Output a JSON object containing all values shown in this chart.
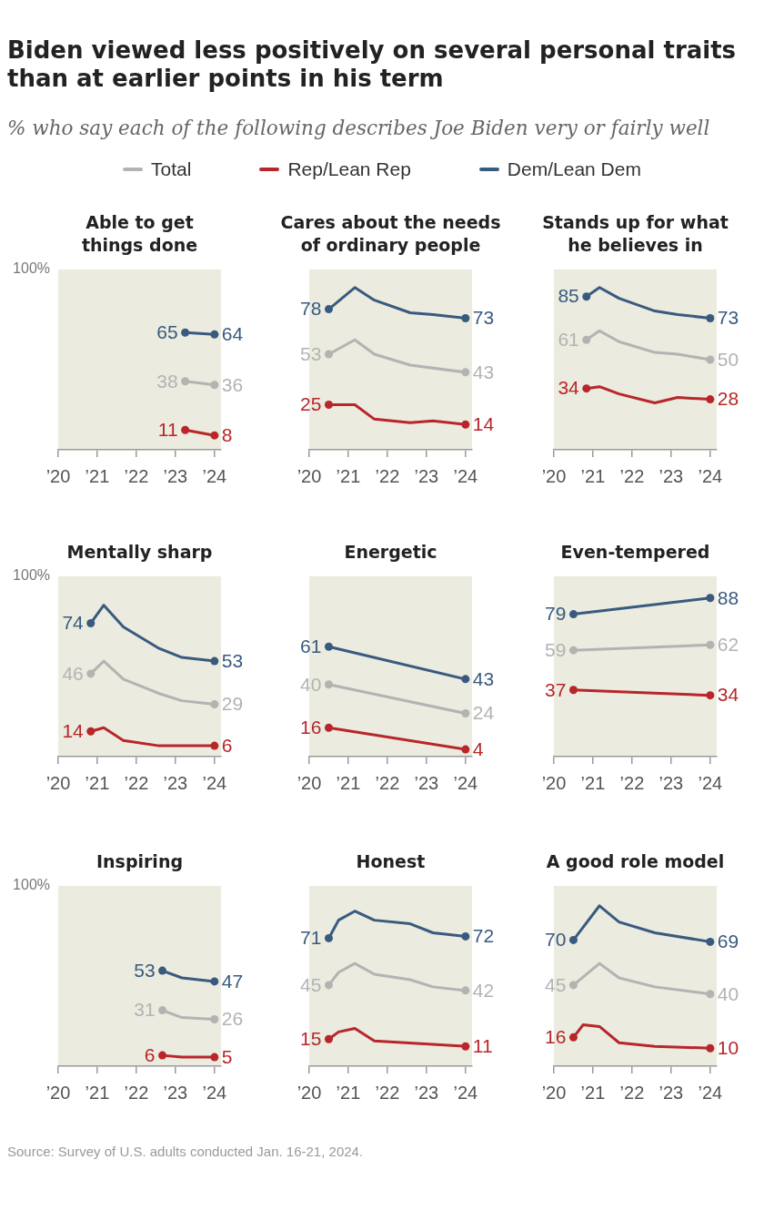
{
  "chart_data": [
    {
      "type": "line",
      "title": "Able to get\nthings done",
      "x": [
        "2023-04",
        "2024-01"
      ],
      "series": [
        {
          "name": "Total",
          "color": "#b3b3b3",
          "values": [
            38,
            36
          ],
          "value_labels": [
            "38",
            "36"
          ]
        },
        {
          "name": "Rep/Lean Rep",
          "color": "#b8262a",
          "values": [
            11,
            8
          ],
          "value_labels": [
            "11",
            "8"
          ]
        },
        {
          "name": "Dem/Lean Dem",
          "color": "#395a7f",
          "values": [
            65,
            64
          ],
          "value_labels": [
            "65",
            "64"
          ]
        }
      ],
      "xlim": [
        "2020-01",
        "2024-03"
      ],
      "xticks": [
        {
          "value": "2020",
          "label": "’20"
        },
        {
          "value": "2021",
          "label": "’21"
        },
        {
          "value": "2022",
          "label": "’22"
        },
        {
          "value": "2023",
          "label": "’23"
        },
        {
          "value": "2024",
          "label": "’24"
        }
      ],
      "ylim": [
        0,
        100
      ],
      "marker": "circle",
      "legend": "top",
      "annotations": [
        "Biden viewed less positively on several personal traits than at earlier points in his term",
        "% who say each of the following describes Joe Biden very or fairly well",
        "100%"
      ]
    },
    {
      "type": "line",
      "title": "Cares about the needs\nof ordinary people",
      "x": [
        "2020-07",
        "2021-03",
        "2021-09",
        "2022-08",
        "2023-03",
        "2024-01"
      ],
      "series": [
        {
          "color": "#b3b3b3",
          "x": [
            "2020-07",
            "2021-03",
            "2021-09",
            "2022-08",
            "2024-01"
          ],
          "values": [
            53,
            61,
            53,
            47,
            43
          ],
          "value_labels": [
            "53",
            null,
            null,
            null,
            "43"
          ]
        },
        {
          "color": "#b8262a",
          "values": [
            25,
            25,
            17,
            15,
            16,
            14
          ],
          "value_labels": [
            "25",
            null,
            null,
            null,
            null,
            "14"
          ]
        },
        {
          "color": "#395a7f",
          "values": [
            78,
            90,
            83,
            76,
            75,
            73
          ],
          "value_labels": [
            "78",
            null,
            null,
            null,
            null,
            "73"
          ]
        }
      ],
      "xlim": [
        "2020-01",
        "2024-03"
      ],
      "xticks": [
        {
          "value": "2020",
          "label": "’20"
        },
        {
          "value": "2021",
          "label": "’21"
        },
        {
          "value": "2022",
          "label": "’22"
        },
        {
          "value": "2023",
          "label": "’23"
        },
        {
          "value": "2024",
          "label": "’24"
        }
      ],
      "ylim": [
        0,
        100
      ]
    },
    {
      "type": "line",
      "title": "Stands up for what\nhe believes in",
      "x": [
        "2020-11",
        "2021-03",
        "2021-09",
        "2022-08",
        "2023-03",
        "2024-01"
      ],
      "series": [
        {
          "color": "#b3b3b3",
          "values": [
            61,
            66,
            60,
            54,
            53,
            50
          ],
          "value_labels": [
            "61",
            null,
            null,
            null,
            null,
            "50"
          ]
        },
        {
          "color": "#b8262a",
          "values": [
            34,
            35,
            31,
            26,
            29,
            28
          ],
          "value_labels": [
            "34",
            null,
            null,
            null,
            null,
            "28"
          ]
        },
        {
          "color": "#395a7f",
          "values": [
            85,
            90,
            84,
            77,
            75,
            73
          ],
          "value_labels": [
            "85",
            null,
            null,
            null,
            null,
            "73"
          ]
        }
      ],
      "xlim": [
        "2020-01",
        "2024-03"
      ],
      "xticks": [
        {
          "value": "2020",
          "label": "’20"
        },
        {
          "value": "2021",
          "label": "’21"
        },
        {
          "value": "2022",
          "label": "’22"
        },
        {
          "value": "2023",
          "label": "’23"
        },
        {
          "value": "2024",
          "label": "’24"
        }
      ],
      "ylim": [
        0,
        100
      ]
    },
    {
      "type": "line",
      "title": "Mentally sharp",
      "x": [
        "2020-11",
        "2021-03",
        "2021-09",
        "2022-08",
        "2023-03",
        "2024-01"
      ],
      "series": [
        {
          "color": "#b3b3b3",
          "values": [
            46,
            53,
            43,
            35,
            31,
            29
          ],
          "value_labels": [
            "46",
            null,
            null,
            null,
            null,
            "29"
          ]
        },
        {
          "color": "#b8262a",
          "values": [
            14,
            16,
            9,
            6,
            6,
            6
          ],
          "value_labels": [
            "14",
            null,
            null,
            null,
            null,
            "6"
          ]
        },
        {
          "color": "#395a7f",
          "values": [
            74,
            84,
            72,
            60,
            55,
            53
          ],
          "value_labels": [
            "74",
            null,
            null,
            null,
            null,
            "53"
          ]
        }
      ],
      "xlim": [
        "2020-01",
        "2024-03"
      ],
      "xticks": [
        {
          "value": "2020",
          "label": "’20"
        },
        {
          "value": "2021",
          "label": "’21"
        },
        {
          "value": "2022",
          "label": "’22"
        },
        {
          "value": "2023",
          "label": "’23"
        },
        {
          "value": "2024",
          "label": "’24"
        }
      ],
      "ylim": [
        0,
        100
      ],
      "annotations": [
        "100%"
      ]
    },
    {
      "type": "line",
      "title": "Energetic",
      "x": [
        "2020-07",
        "2024-01"
      ],
      "series": [
        {
          "color": "#b3b3b3",
          "values": [
            40,
            24
          ],
          "value_labels": [
            "40",
            "24"
          ]
        },
        {
          "color": "#b8262a",
          "values": [
            16,
            4
          ],
          "value_labels": [
            "16",
            "4"
          ]
        },
        {
          "color": "#395a7f",
          "values": [
            61,
            43
          ],
          "value_labels": [
            "61",
            "43"
          ]
        }
      ],
      "xlim": [
        "2020-01",
        "2024-03"
      ],
      "xticks": [
        {
          "value": "2020",
          "label": "’20"
        },
        {
          "value": "2021",
          "label": "’21"
        },
        {
          "value": "2022",
          "label": "’22"
        },
        {
          "value": "2023",
          "label": "’23"
        },
        {
          "value": "2024",
          "label": "’24"
        }
      ],
      "ylim": [
        0,
        100
      ],
      "marker": "circle"
    },
    {
      "type": "line",
      "title": "Even-tempered",
      "x": [
        "2020-07",
        "2024-01"
      ],
      "series": [
        {
          "color": "#b3b3b3",
          "values": [
            59,
            62
          ],
          "value_labels": [
            "59",
            "62"
          ]
        },
        {
          "color": "#b8262a",
          "values": [
            37,
            34
          ],
          "value_labels": [
            "37",
            "34"
          ]
        },
        {
          "color": "#395a7f",
          "values": [
            79,
            88
          ],
          "value_labels": [
            "79",
            "88"
          ]
        }
      ],
      "xlim": [
        "2020-01",
        "2024-03"
      ],
      "xticks": [
        {
          "value": "2020",
          "label": "’20"
        },
        {
          "value": "2021",
          "label": "’21"
        },
        {
          "value": "2022",
          "label": "’22"
        },
        {
          "value": "2023",
          "label": "’23"
        },
        {
          "value": "2024",
          "label": "’24"
        }
      ],
      "ylim": [
        0,
        100
      ],
      "marker": "circle"
    },
    {
      "type": "line",
      "title": "Inspiring",
      "x": [
        "2022-09",
        "2023-03",
        "2024-01"
      ],
      "series": [
        {
          "color": "#b3b3b3",
          "values": [
            31,
            27,
            26
          ],
          "value_labels": [
            "31",
            null,
            "26"
          ]
        },
        {
          "color": "#b8262a",
          "values": [
            6,
            5,
            5
          ],
          "value_labels": [
            "6",
            null,
            "5"
          ]
        },
        {
          "color": "#395a7f",
          "values": [
            53,
            49,
            47
          ],
          "value_labels": [
            "53",
            null,
            "47"
          ]
        }
      ],
      "xlim": [
        "2020-01",
        "2024-03"
      ],
      "xticks": [
        {
          "value": "2020",
          "label": "’20"
        },
        {
          "value": "2021",
          "label": "’21"
        },
        {
          "value": "2022",
          "label": "’22"
        },
        {
          "value": "2023",
          "label": "’23"
        },
        {
          "value": "2024",
          "label": "’24"
        }
      ],
      "ylim": [
        0,
        100
      ],
      "annotations": [
        "100%"
      ]
    },
    {
      "type": "line",
      "title": "Honest",
      "x": [
        "2020-07",
        "2020-10",
        "2021-03",
        "2021-09",
        "2022-08",
        "2023-03",
        "2024-01"
      ],
      "series": [
        {
          "color": "#b3b3b3",
          "values": [
            45,
            52,
            57,
            51,
            48,
            44,
            42
          ],
          "value_labels": [
            "45",
            null,
            null,
            null,
            null,
            null,
            "42"
          ]
        },
        {
          "color": "#b8262a",
          "x": [
            "2020-07",
            "2020-10",
            "2021-03",
            "2021-09",
            "2024-01"
          ],
          "values": [
            15,
            19,
            21,
            14,
            11
          ],
          "value_labels": [
            "15",
            null,
            null,
            null,
            "11"
          ]
        },
        {
          "color": "#395a7f",
          "values": [
            71,
            81,
            86,
            81,
            79,
            74,
            72
          ],
          "value_labels": [
            "71",
            null,
            null,
            null,
            null,
            null,
            "72"
          ]
        }
      ],
      "xlim": [
        "2020-01",
        "2024-03"
      ],
      "xticks": [
        {
          "value": "2020",
          "label": "’20"
        },
        {
          "value": "2021",
          "label": "’21"
        },
        {
          "value": "2022",
          "label": "’22"
        },
        {
          "value": "2023",
          "label": "’23"
        },
        {
          "value": "2024",
          "label": "’24"
        }
      ],
      "ylim": [
        0,
        100
      ]
    },
    {
      "type": "line",
      "title": "A good role model",
      "x": [
        "2020-07",
        "2021-03",
        "2021-09",
        "2022-08",
        "2024-01"
      ],
      "series": [
        {
          "color": "#b3b3b3",
          "values": [
            45,
            57,
            49,
            44,
            40
          ],
          "value_labels": [
            "45",
            null,
            null,
            null,
            "40"
          ]
        },
        {
          "color": "#b8262a",
          "x": [
            "2020-07",
            "2020-10",
            "2021-03",
            "2021-09",
            "2022-08",
            "2024-01"
          ],
          "values": [
            16,
            23,
            22,
            13,
            11,
            10
          ],
          "value_labels": [
            "16",
            null,
            null,
            null,
            null,
            "10"
          ]
        },
        {
          "color": "#395a7f",
          "values": [
            70,
            89,
            80,
            74,
            69
          ],
          "value_labels": [
            "70",
            null,
            null,
            null,
            "69"
          ]
        }
      ],
      "xlim": [
        "2020-01",
        "2024-03"
      ],
      "xticks": [
        {
          "value": "2020",
          "label": "’20"
        },
        {
          "value": "2021",
          "label": "’21"
        },
        {
          "value": "2022",
          "label": "’22"
        },
        {
          "value": "2023",
          "label": "’23"
        },
        {
          "value": "2024",
          "label": "’24"
        }
      ],
      "ylim": [
        0,
        100
      ],
      "annotations": [
        "Source: Survey of U.S. adults conducted Jan. 16-21, 2024."
      ]
    }
  ]
}
